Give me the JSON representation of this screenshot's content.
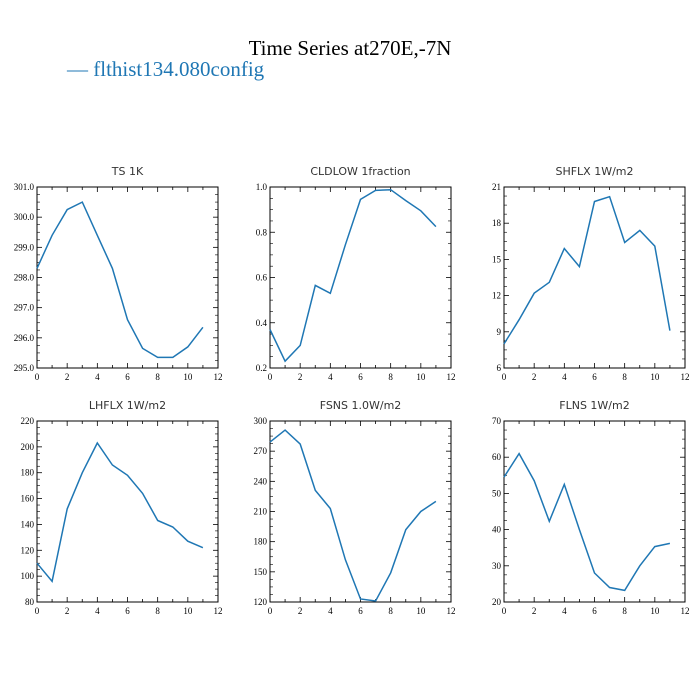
{
  "title": "Time Series at270E,-7N",
  "legend": "— flthist134.080config",
  "chart_data": [
    {
      "type": "line",
      "title": "TS",
      "units": "1K",
      "x": [
        0,
        1,
        2,
        3,
        4,
        5,
        6,
        7,
        8,
        9,
        10,
        11
      ],
      "values": [
        298.3,
        299.4,
        300.25,
        300.5,
        299.4,
        298.3,
        296.6,
        295.65,
        295.35,
        295.35,
        295.7,
        296.35
      ],
      "xlim": [
        0,
        12
      ],
      "ylim": [
        295,
        301
      ],
      "xticks": [
        "0",
        "2",
        "4",
        "6",
        "8",
        "10",
        "12"
      ],
      "yticks": [
        "295.0",
        "296.0",
        "297.0",
        "298.0",
        "299.0",
        "300.0",
        "301.0"
      ],
      "series_color": "#1f77b4"
    },
    {
      "type": "line",
      "title": "CLDLOW",
      "units": "1fraction",
      "x": [
        0,
        1,
        2,
        3,
        4,
        5,
        6,
        7,
        8,
        9,
        10,
        11
      ],
      "values": [
        0.37,
        0.23,
        0.3,
        0.565,
        0.53,
        0.745,
        0.945,
        0.985,
        0.988,
        0.94,
        0.895,
        0.825
      ],
      "xlim": [
        0,
        12
      ],
      "ylim": [
        0.2,
        1.0
      ],
      "xticks": [
        "0",
        "2",
        "4",
        "6",
        "8",
        "10",
        "12"
      ],
      "yticks": [
        "0.2",
        "0.4",
        "0.6",
        "0.8",
        "1.0"
      ],
      "series_color": "#1f77b4"
    },
    {
      "type": "line",
      "title": "SHFLX",
      "units": "1W/m2",
      "x": [
        0,
        1,
        2,
        3,
        4,
        5,
        6,
        7,
        8,
        9,
        10,
        11
      ],
      "values": [
        8.0,
        10.0,
        12.2,
        13.1,
        15.9,
        14.4,
        19.8,
        20.2,
        16.4,
        17.4,
        16.1,
        9.1
      ],
      "xlim": [
        0,
        12
      ],
      "ylim": [
        6,
        21
      ],
      "xticks": [
        "0",
        "2",
        "4",
        "6",
        "8",
        "10",
        "12"
      ],
      "yticks": [
        "6",
        "9",
        "12",
        "15",
        "18",
        "21"
      ],
      "series_color": "#1f77b4"
    },
    {
      "type": "line",
      "title": "LHFLX",
      "units": "1W/m2",
      "x": [
        0,
        1,
        2,
        3,
        4,
        5,
        6,
        7,
        8,
        9,
        10,
        11
      ],
      "values": [
        110,
        96,
        152,
        180,
        203,
        186,
        178,
        164,
        143,
        138,
        127,
        122
      ],
      "xlim": [
        0,
        12
      ],
      "ylim": [
        80,
        220
      ],
      "xticks": [
        "0",
        "2",
        "4",
        "6",
        "8",
        "10",
        "12"
      ],
      "yticks": [
        "80",
        "100",
        "120",
        "140",
        "160",
        "180",
        "200",
        "220"
      ],
      "series_color": "#1f77b4"
    },
    {
      "type": "line",
      "title": "FSNS",
      "units": "1.0W/m2",
      "x": [
        0,
        1,
        2,
        3,
        4,
        5,
        6,
        7,
        8,
        9,
        10,
        11
      ],
      "values": [
        279,
        291,
        277,
        231,
        213,
        162,
        123,
        121,
        149,
        192,
        210,
        220
      ],
      "xlim": [
        0,
        12
      ],
      "ylim": [
        120,
        300
      ],
      "xticks": [
        "0",
        "2",
        "4",
        "6",
        "8",
        "10",
        "12"
      ],
      "yticks": [
        "120",
        "150",
        "180",
        "210",
        "240",
        "270",
        "300"
      ],
      "series_color": "#1f77b4"
    },
    {
      "type": "line",
      "title": "FLNS",
      "units": "1W/m2",
      "x": [
        0,
        1,
        2,
        3,
        4,
        5,
        6,
        7,
        8,
        9,
        10,
        11
      ],
      "values": [
        54.5,
        61,
        53.5,
        42.3,
        52.5,
        40,
        28,
        24,
        23.2,
        30,
        35.3,
        36.2
      ],
      "xlim": [
        0,
        12
      ],
      "ylim": [
        20,
        70
      ],
      "xticks": [
        "0",
        "2",
        "4",
        "6",
        "8",
        "10",
        "12"
      ],
      "yticks": [
        "20",
        "30",
        "40",
        "50",
        "60",
        "70"
      ],
      "series_color": "#1f77b4"
    }
  ]
}
